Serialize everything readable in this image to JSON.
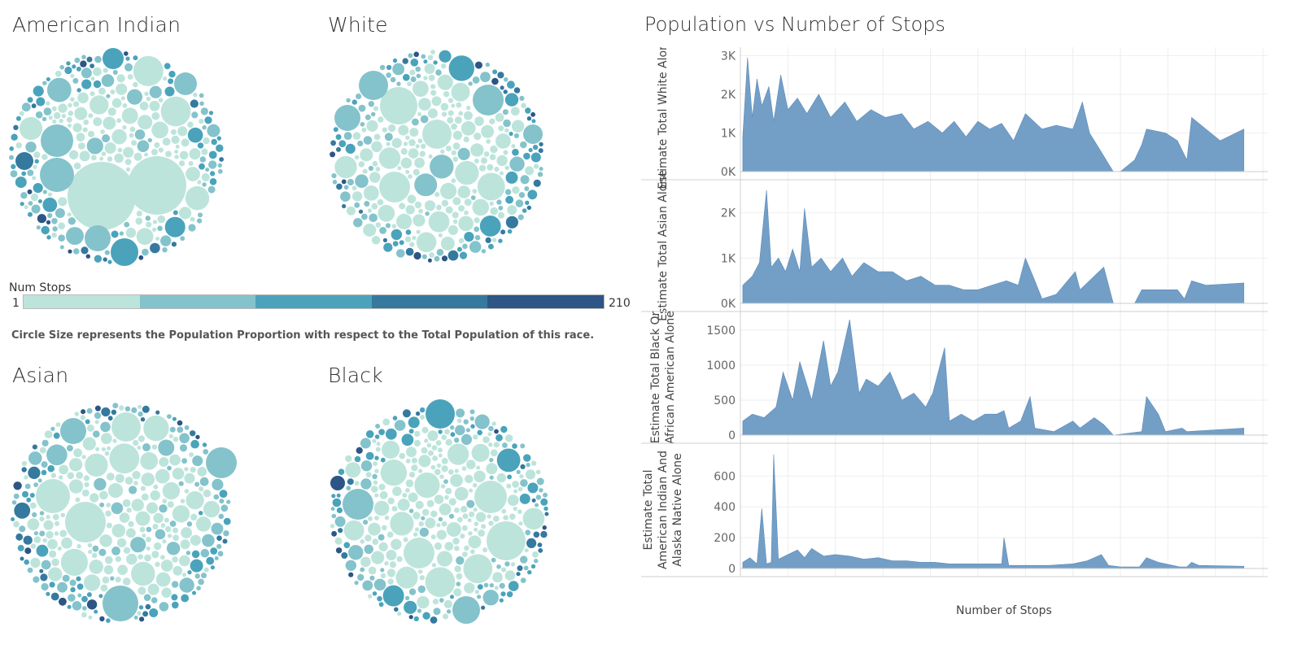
{
  "bubbles": {
    "legend": {
      "title": "Num Stops",
      "min": "1",
      "max": "210",
      "colors": [
        "#bde4db",
        "#84c3cb",
        "#4aa3bb",
        "#35799f",
        "#2d5585"
      ]
    },
    "note": "Circle Size represents the Population Proportion with respect to the Total Population of this race.",
    "groups": [
      {
        "title": "American Indian"
      },
      {
        "title": "White"
      },
      {
        "title": "Asian"
      },
      {
        "title": "Black"
      }
    ]
  },
  "area_chart": {
    "title": "Population vs Number of Stops",
    "fill_color": "#739fc7",
    "grid": true
  },
  "chart_data": {
    "type": "area",
    "title": "Population vs Number of Stops",
    "xlabel": "Number of Stops",
    "xlim": [
      0,
      222
    ],
    "x_ticks": [
      "20",
      "40",
      "60",
      "80",
      "100",
      "120",
      "140",
      "160",
      "180",
      "200",
      "220"
    ],
    "panels": [
      {
        "ylabel": "Estimate Total White Alone",
        "ylim": [
          0,
          3050
        ],
        "y_ticks": [
          {
            "value": 0,
            "label": "0K"
          },
          {
            "value": 1000,
            "label": "1K"
          },
          {
            "value": 2000,
            "label": "2K"
          },
          {
            "value": 3000,
            "label": "3K"
          }
        ],
        "points": [
          [
            1,
            900
          ],
          [
            3,
            2950
          ],
          [
            5,
            1400
          ],
          [
            7,
            2400
          ],
          [
            9,
            1700
          ],
          [
            12,
            2200
          ],
          [
            14,
            1300
          ],
          [
            17,
            2500
          ],
          [
            20,
            1600
          ],
          [
            24,
            1900
          ],
          [
            28,
            1500
          ],
          [
            33,
            2000
          ],
          [
            38,
            1400
          ],
          [
            44,
            1800
          ],
          [
            49,
            1300
          ],
          [
            55,
            1600
          ],
          [
            61,
            1400
          ],
          [
            68,
            1500
          ],
          [
            73,
            1100
          ],
          [
            79,
            1300
          ],
          [
            85,
            1000
          ],
          [
            90,
            1300
          ],
          [
            95,
            900
          ],
          [
            100,
            1300
          ],
          [
            105,
            1100
          ],
          [
            110,
            1250
          ],
          [
            115,
            800
          ],
          [
            120,
            1500
          ],
          [
            127,
            1100
          ],
          [
            133,
            1200
          ],
          [
            140,
            1100
          ],
          [
            144,
            1800
          ],
          [
            147,
            1000
          ],
          [
            152,
            500
          ],
          [
            155,
            200
          ],
          [
            157,
            0
          ],
          [
            160,
            0
          ],
          [
            166,
            300
          ],
          [
            169,
            700
          ],
          [
            171,
            1100
          ],
          [
            179,
            1000
          ],
          [
            184,
            800
          ],
          [
            188,
            300
          ],
          [
            190,
            1400
          ],
          [
            196,
            1100
          ],
          [
            202,
            800
          ],
          [
            212,
            1100
          ]
        ]
      },
      {
        "ylabel": "Estimate Total Asian Alone",
        "ylim": [
          0,
          2550
        ],
        "y_ticks": [
          {
            "value": 0,
            "label": "0K"
          },
          {
            "value": 1000,
            "label": "1K"
          },
          {
            "value": 2000,
            "label": "2K"
          }
        ],
        "points": [
          [
            1,
            400
          ],
          [
            5,
            600
          ],
          [
            8,
            900
          ],
          [
            11,
            2500
          ],
          [
            13,
            800
          ],
          [
            16,
            1000
          ],
          [
            19,
            700
          ],
          [
            22,
            1200
          ],
          [
            25,
            700
          ],
          [
            27,
            2100
          ],
          [
            30,
            800
          ],
          [
            34,
            1000
          ],
          [
            38,
            700
          ],
          [
            43,
            1000
          ],
          [
            47,
            600
          ],
          [
            52,
            900
          ],
          [
            58,
            700
          ],
          [
            64,
            700
          ],
          [
            70,
            500
          ],
          [
            76,
            600
          ],
          [
            82,
            400
          ],
          [
            88,
            400
          ],
          [
            94,
            300
          ],
          [
            100,
            300
          ],
          [
            106,
            400
          ],
          [
            112,
            500
          ],
          [
            117,
            400
          ],
          [
            120,
            1000
          ],
          [
            124,
            500
          ],
          [
            127,
            100
          ],
          [
            133,
            200
          ],
          [
            141,
            700
          ],
          [
            143,
            300
          ],
          [
            149,
            600
          ],
          [
            153,
            800
          ],
          [
            157,
            0
          ],
          [
            166,
            0
          ],
          [
            169,
            300
          ],
          [
            173,
            300
          ],
          [
            184,
            300
          ],
          [
            187,
            100
          ],
          [
            190,
            500
          ],
          [
            196,
            400
          ],
          [
            212,
            450
          ]
        ]
      },
      {
        "ylabel": "Estimate Total Black Or African American Alone",
        "ylim": [
          0,
          1650
        ],
        "y_ticks": [
          {
            "value": 0,
            "label": "0"
          },
          {
            "value": 500,
            "label": "500"
          },
          {
            "value": 1000,
            "label": "1000"
          },
          {
            "value": 1500,
            "label": "1500"
          }
        ],
        "points": [
          [
            1,
            200
          ],
          [
            5,
            300
          ],
          [
            10,
            250
          ],
          [
            15,
            400
          ],
          [
            18,
            900
          ],
          [
            22,
            500
          ],
          [
            25,
            1050
          ],
          [
            30,
            500
          ],
          [
            35,
            1350
          ],
          [
            38,
            700
          ],
          [
            41,
            900
          ],
          [
            46,
            1650
          ],
          [
            50,
            600
          ],
          [
            53,
            800
          ],
          [
            58,
            700
          ],
          [
            63,
            900
          ],
          [
            68,
            500
          ],
          [
            73,
            600
          ],
          [
            78,
            400
          ],
          [
            81,
            600
          ],
          [
            86,
            1250
          ],
          [
            88,
            200
          ],
          [
            93,
            300
          ],
          [
            98,
            200
          ],
          [
            103,
            300
          ],
          [
            108,
            300
          ],
          [
            111,
            350
          ],
          [
            113,
            100
          ],
          [
            118,
            200
          ],
          [
            122,
            550
          ],
          [
            124,
            100
          ],
          [
            132,
            50
          ],
          [
            140,
            200
          ],
          [
            143,
            100
          ],
          [
            149,
            250
          ],
          [
            153,
            150
          ],
          [
            157,
            0
          ],
          [
            169,
            50
          ],
          [
            171,
            550
          ],
          [
            176,
            300
          ],
          [
            179,
            50
          ],
          [
            186,
            100
          ],
          [
            188,
            50
          ],
          [
            212,
            100
          ]
        ]
      },
      {
        "ylabel": "Estimate Total American Indian And Alaska Native Alone",
        "ylim": [
          0,
          760
        ],
        "y_ticks": [
          {
            "value": 0,
            "label": "0"
          },
          {
            "value": 200,
            "label": "200"
          },
          {
            "value": 400,
            "label": "400"
          },
          {
            "value": 600,
            "label": "600"
          }
        ],
        "points": [
          [
            1,
            40
          ],
          [
            4,
            70
          ],
          [
            7,
            30
          ],
          [
            9,
            390
          ],
          [
            11,
            30
          ],
          [
            13,
            40
          ],
          [
            14,
            740
          ],
          [
            16,
            60
          ],
          [
            20,
            90
          ],
          [
            24,
            120
          ],
          [
            27,
            70
          ],
          [
            30,
            130
          ],
          [
            35,
            80
          ],
          [
            40,
            90
          ],
          [
            46,
            80
          ],
          [
            52,
            60
          ],
          [
            58,
            70
          ],
          [
            64,
            50
          ],
          [
            70,
            50
          ],
          [
            76,
            40
          ],
          [
            82,
            40
          ],
          [
            88,
            30
          ],
          [
            95,
            30
          ],
          [
            100,
            30
          ],
          [
            106,
            30
          ],
          [
            110,
            30
          ],
          [
            111,
            200
          ],
          [
            113,
            20
          ],
          [
            120,
            20
          ],
          [
            130,
            20
          ],
          [
            140,
            30
          ],
          [
            146,
            50
          ],
          [
            152,
            90
          ],
          [
            155,
            20
          ],
          [
            160,
            10
          ],
          [
            168,
            10
          ],
          [
            171,
            70
          ],
          [
            176,
            40
          ],
          [
            185,
            10
          ],
          [
            188,
            10
          ],
          [
            190,
            40
          ],
          [
            193,
            20
          ],
          [
            212,
            15
          ]
        ]
      }
    ]
  }
}
